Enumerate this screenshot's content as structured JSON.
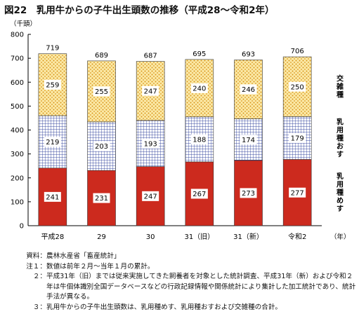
{
  "title": "図22　乳用牛からの子牛出生頭数の推移（平成28〜令和2年）",
  "chart_data": {
    "type": "bar",
    "stacked": true,
    "y_unit": "（千頭）",
    "x_unit": "（年）",
    "ylim": [
      0,
      800
    ],
    "yticks": [
      0,
      100,
      200,
      300,
      400,
      500,
      600,
      700,
      800
    ],
    "categories": [
      "平成28",
      "29",
      "30",
      "31（旧）",
      "31（新）",
      "令和2"
    ],
    "series": [
      {
        "name": "乳用種めす",
        "color": "#cc2a1e",
        "pattern": "solid",
        "values": [
          241,
          231,
          247,
          267,
          273,
          277
        ]
      },
      {
        "name": "乳用種おす",
        "color": "#3a4aa0",
        "pattern": "grid",
        "values": [
          219,
          203,
          193,
          188,
          174,
          179
        ]
      },
      {
        "name": "交雑種",
        "color": "#e8b23a",
        "pattern": "dots",
        "values": [
          259,
          255,
          247,
          240,
          246,
          250
        ]
      }
    ],
    "totals": [
      719,
      689,
      687,
      695,
      693,
      706
    ],
    "legend": "right (labels beside the bars)"
  },
  "notes": [
    {
      "label": "資料：",
      "text": "農林水産省「畜産統計」"
    },
    {
      "label": "注１：",
      "text": "数値は前年２月〜当年１月の累計。"
    },
    {
      "label": "２：",
      "text": "平成31年（旧）までは従来実施してきた飼養者を対象とした統計調査、平成31年（新）および令和２年は牛個体識別全国データベースなどの行政記録情報や関係統計により集計した加工統計であり、統計手法が異なる。"
    },
    {
      "label": "３：",
      "text": "乳用牛からの子牛出生頭数は、乳用種めす、乳用種おすおよび交雑種の合計。"
    }
  ]
}
